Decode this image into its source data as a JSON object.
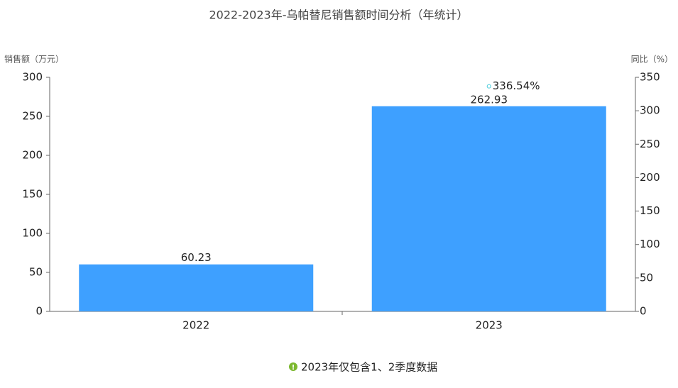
{
  "chart_data": {
    "type": "bar",
    "title": "2022-2023年-乌帕替尼销售额时间分析（年统计）",
    "y_label": "销售额（万元）",
    "y2_label": "同比（%）",
    "note": "2023年仅包含1、2季度数据",
    "categories": [
      "2022",
      "2023"
    ],
    "series": [
      {
        "type": "bar",
        "color": "#3ea0ff",
        "values": [
          60.23,
          262.93
        ]
      },
      {
        "type": "line",
        "axis": "y2",
        "color": "#5fd3e0",
        "values": [
          null,
          336.54
        ],
        "value_labels": [
          null,
          "336.54%"
        ]
      }
    ],
    "ylim": [
      0,
      300
    ],
    "yticks": [
      0,
      50,
      100,
      150,
      200,
      250,
      300
    ],
    "y2lim": [
      0,
      350
    ],
    "y2ticks": [
      0,
      50,
      100,
      150,
      200,
      250,
      300,
      350
    ],
    "grid": false
  }
}
